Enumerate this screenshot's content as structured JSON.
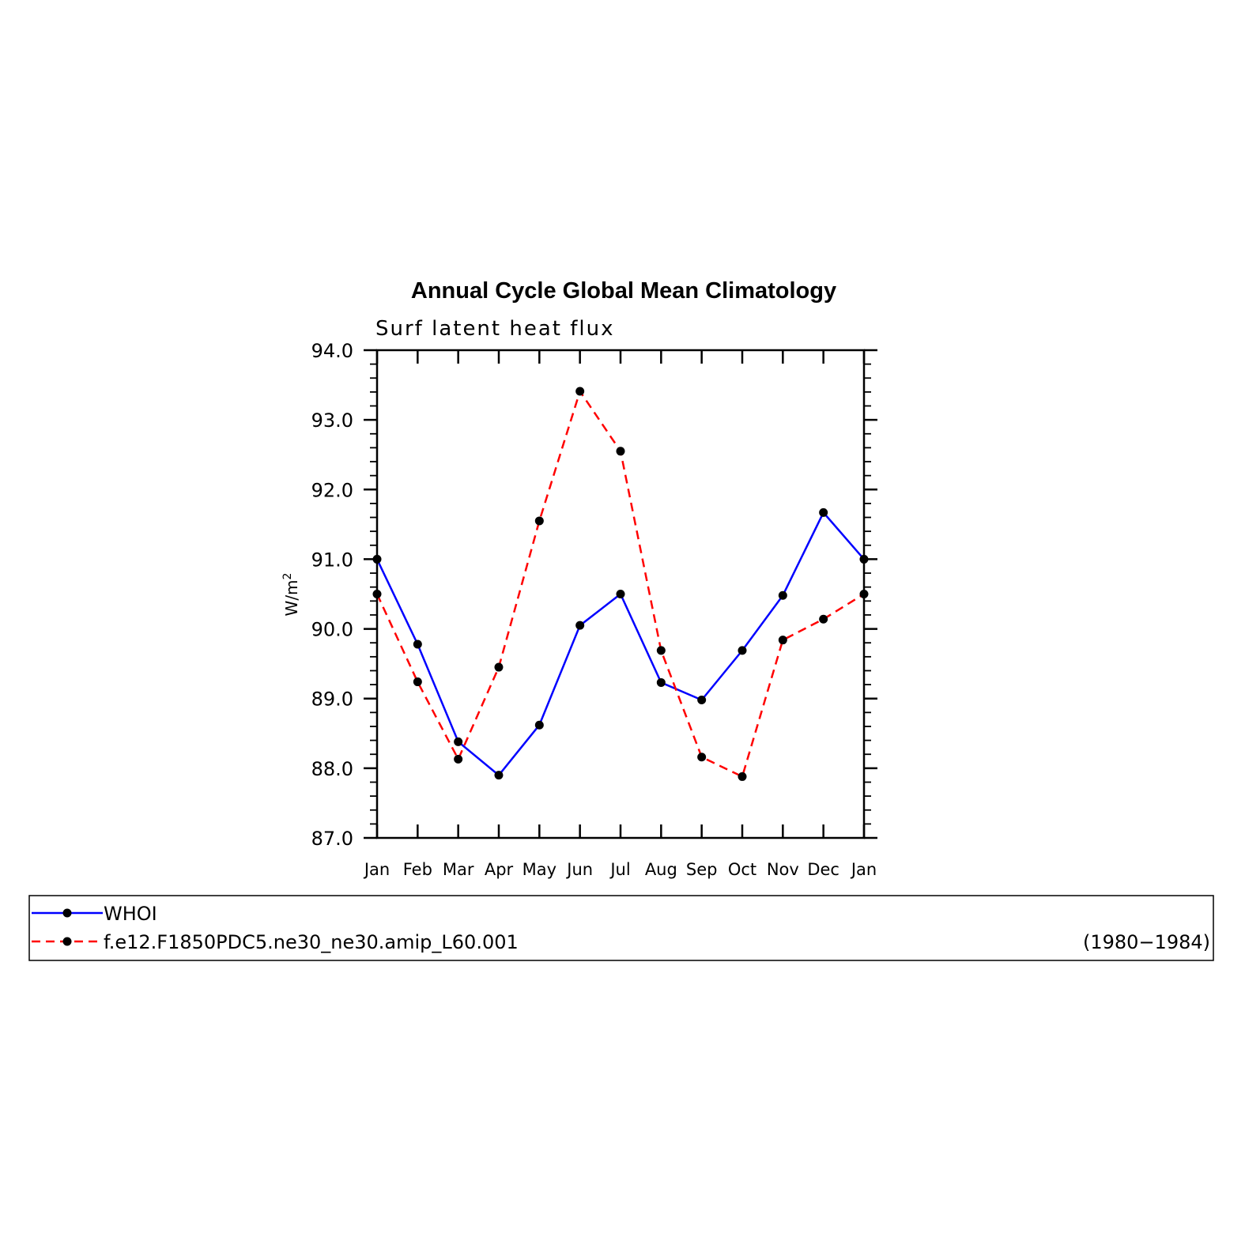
{
  "chart_data": {
    "type": "line",
    "title": "Annual Cycle Global Mean Climatology",
    "subtitle": "Surf latent heat flux",
    "xlabel": "",
    "ylabel": "W/m",
    "ylabel_superscript": "2",
    "categories": [
      "Jan",
      "Feb",
      "Mar",
      "Apr",
      "May",
      "Jun",
      "Jul",
      "Aug",
      "Sep",
      "Oct",
      "Nov",
      "Dec",
      "Jan"
    ],
    "ylim": [
      87.0,
      94.0
    ],
    "yticks": [
      "87.0",
      "88.0",
      "89.0",
      "90.0",
      "91.0",
      "92.0",
      "93.0",
      "94.0"
    ],
    "grid": false,
    "legend_position": "bottom",
    "series": [
      {
        "name": "WHOI",
        "color": "#0000ff",
        "dash": "solid",
        "values": [
          91.0,
          89.78,
          88.38,
          87.9,
          88.62,
          90.05,
          90.5,
          89.23,
          88.98,
          89.69,
          90.48,
          91.67,
          91.0
        ]
      },
      {
        "name": "f.e12.F1850PDC5.ne30_ne30.amip_L60.001",
        "color": "#ff0000",
        "dash": "dashed",
        "values": [
          90.5,
          89.24,
          88.13,
          89.45,
          91.55,
          93.41,
          92.55,
          89.69,
          88.16,
          87.88,
          89.84,
          90.14,
          90.5
        ]
      }
    ],
    "legend_period": "(1980−1984)"
  }
}
